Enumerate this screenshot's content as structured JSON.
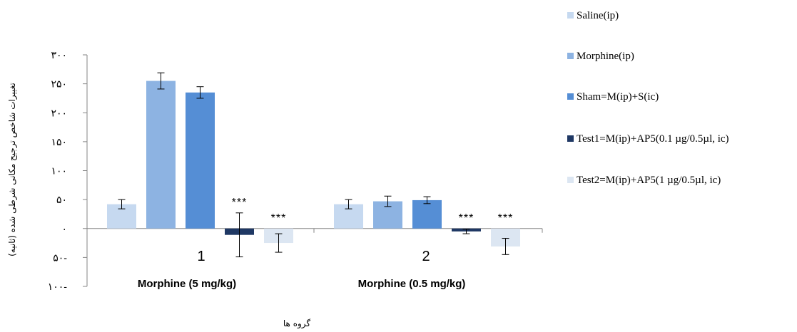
{
  "chart_data": {
    "type": "bar",
    "title": "",
    "xlabel": "گروه ها",
    "ylabel": "تغییرات شاخص ترجیح مکانی شرطی شده (ثانیه)",
    "ylim": [
      -100,
      300
    ],
    "yticks": [
      300,
      250,
      200,
      150,
      100,
      50,
      0,
      -50,
      -100
    ],
    "ytick_labels": [
      "۳۰۰",
      "۲۵۰",
      "۲۰۰",
      "۱۵۰",
      "۱۰۰",
      "۵۰",
      "۰",
      "۵۰-",
      "۱۰۰-"
    ],
    "categories": [
      "1",
      "2"
    ],
    "category_labels": [
      "Morphine (5 mg/kg)",
      "Morphine (0.5 mg/kg)"
    ],
    "grid": false,
    "legend_position": "right",
    "series": [
      {
        "name": "Saline(ip)",
        "color": "#c6d9f0",
        "values": [
          42,
          42
        ],
        "errors": [
          8,
          8
        ],
        "annotations": [
          "",
          ""
        ]
      },
      {
        "name": "Morphine(ip)",
        "color": "#8db3e2",
        "values": [
          255,
          47
        ],
        "errors": [
          14,
          9
        ],
        "annotations": [
          "",
          ""
        ]
      },
      {
        "name": "Sham=M(ip)+S(ic)",
        "color": "#558ed5",
        "values": [
          235,
          49
        ],
        "errors": [
          10,
          6
        ],
        "annotations": [
          "",
          ""
        ]
      },
      {
        "name": "Test1=M(ip)+AP5(0.1 µg/0.5µl, ic)",
        "color": "#1f3864",
        "values": [
          -11,
          -5
        ],
        "errors": [
          38,
          4
        ],
        "annotations": [
          "***",
          "***"
        ]
      },
      {
        "name": "Test2=M(ip)+AP5(1 µg/0.5µl, ic)",
        "color": "#dce6f2",
        "values": [
          -25,
          -31
        ],
        "errors": [
          16,
          14
        ],
        "annotations": [
          "***",
          "***"
        ]
      }
    ]
  }
}
